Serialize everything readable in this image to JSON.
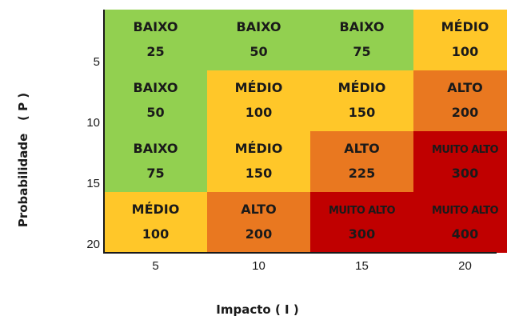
{
  "chart_data": {
    "type": "heatmap",
    "title": "",
    "xlabel": "Impacto ( I )",
    "ylabel": "Probabilidade   ( P )",
    "x_categories": [
      "5",
      "10",
      "15",
      "20"
    ],
    "y_categories": [
      "5",
      "10",
      "15",
      "20"
    ],
    "rows": [
      {
        "y": "5",
        "cells": [
          {
            "level": "BAIXO",
            "value": "25"
          },
          {
            "level": "BAIXO",
            "value": "50"
          },
          {
            "level": "BAIXO",
            "value": "75"
          },
          {
            "level": "MÉDIO",
            "value": "100"
          }
        ]
      },
      {
        "y": "10",
        "cells": [
          {
            "level": "BAIXO",
            "value": "50"
          },
          {
            "level": "MÉDIO",
            "value": "100"
          },
          {
            "level": "MÉDIO",
            "value": "150"
          },
          {
            "level": "ALTO",
            "value": "200"
          }
        ]
      },
      {
        "y": "15",
        "cells": [
          {
            "level": "BAIXO",
            "value": "75"
          },
          {
            "level": "MÉDIO",
            "value": "150"
          },
          {
            "level": "ALTO",
            "value": "225"
          },
          {
            "level": "MUITO ALTO",
            "value": "300"
          }
        ]
      },
      {
        "y": "20",
        "cells": [
          {
            "level": "MÉDIO",
            "value": "100"
          },
          {
            "level": "ALTO",
            "value": "200"
          },
          {
            "level": "MUITO ALTO",
            "value": "300"
          },
          {
            "level": "MUITO ALTO",
            "value": "400"
          }
        ]
      }
    ],
    "level_colors": {
      "BAIXO": "#92D050",
      "MÉDIO": "#FFC729",
      "ALTO": "#E97820",
      "MUITO ALTO": "#C00000"
    },
    "grid": false,
    "legend": "none"
  }
}
